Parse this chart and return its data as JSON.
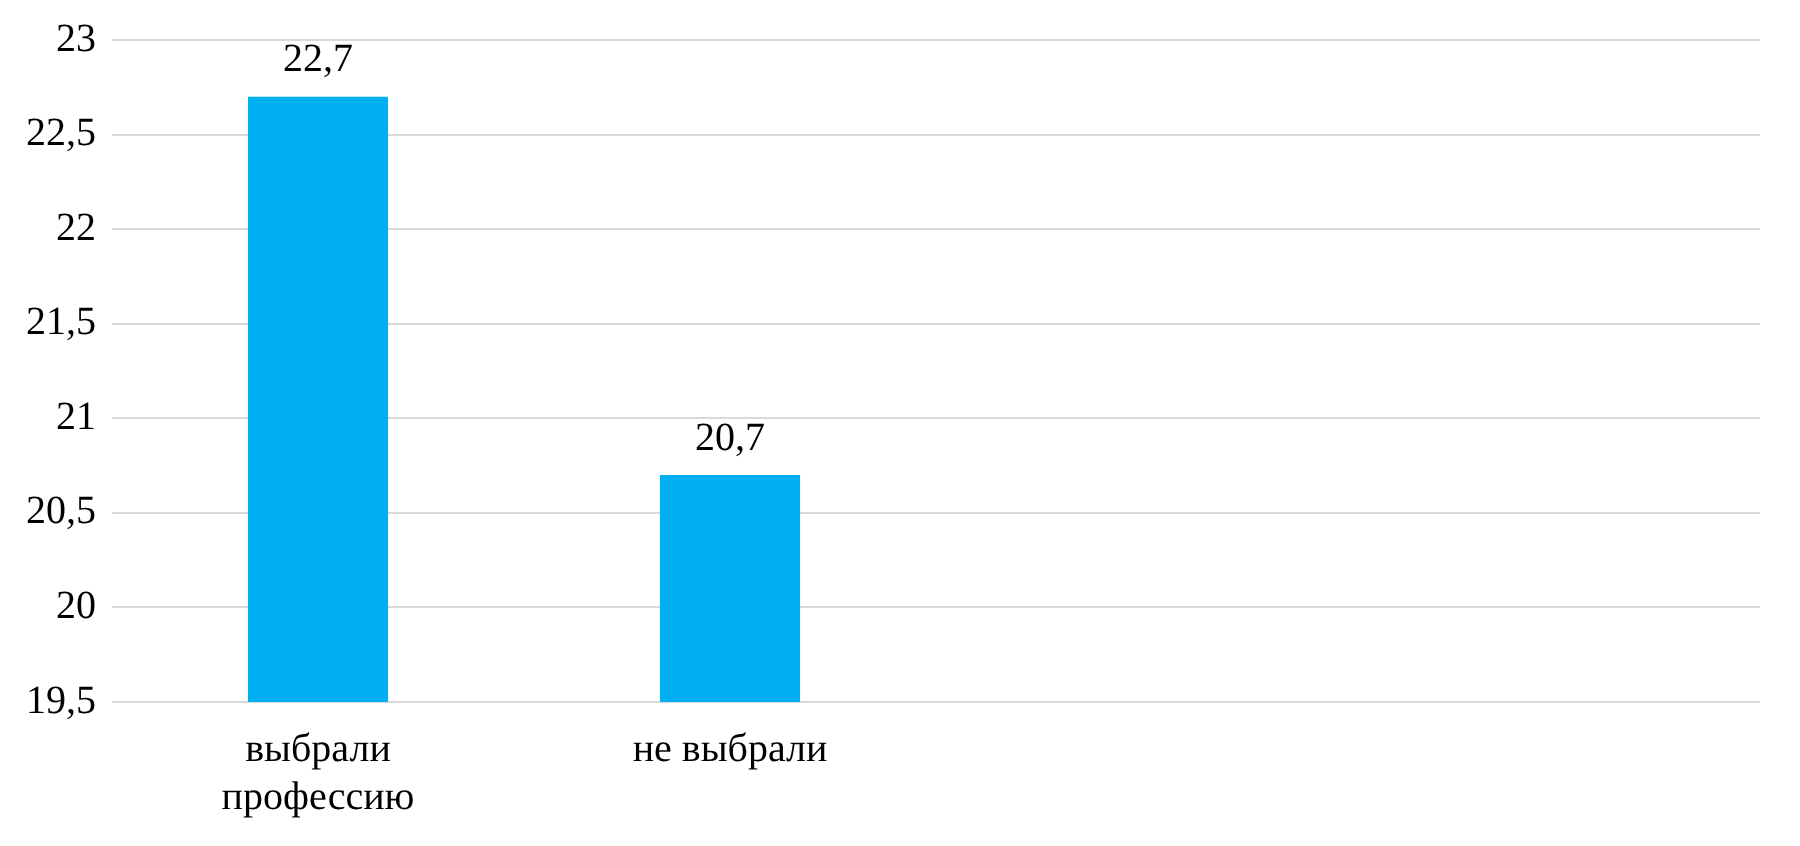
{
  "chart_data": {
    "type": "bar",
    "categories": [
      "выбрали профессию",
      "не выбрали",
      null,
      null
    ],
    "values": [
      22.7,
      20.7,
      null,
      null
    ],
    "value_labels": [
      "22,7",
      "20,7",
      null,
      null
    ],
    "color": "#00b0f0",
    "ylim": [
      19.5,
      23
    ],
    "yticks": [
      {
        "value": 19.5,
        "label": "19,5"
      },
      20,
      {
        "value": 20.5,
        "label": "20,5"
      },
      21,
      {
        "value": 21.5,
        "label": "21,5"
      },
      22,
      {
        "value": 22.5,
        "label": "22,5"
      },
      23
    ],
    "grid": "y",
    "legend": false
  }
}
